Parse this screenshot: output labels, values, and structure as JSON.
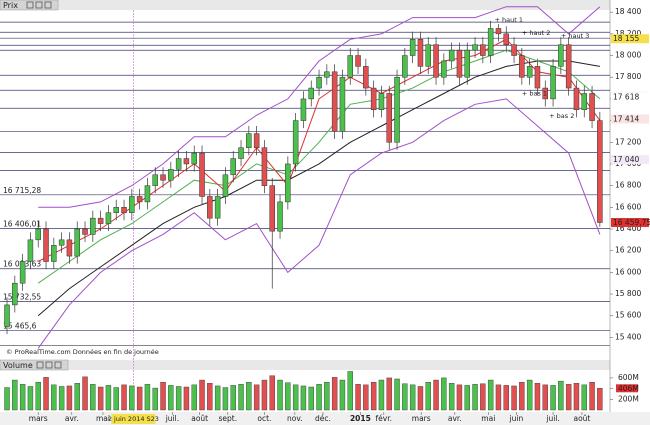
{
  "chart_data": {
    "type": "candlestick",
    "panel_title": "Prix",
    "volume_title": "Volume",
    "footer": "© ProRealTime.com  Données en fin de journée",
    "xlim": [
      -0.9,
      77.3
    ],
    "xticks": [
      {
        "value": 4,
        "label": "mars"
      },
      {
        "value": 8.3,
        "label": "avr."
      },
      {
        "value": 12.3,
        "label": "mai"
      },
      {
        "value": 21.2,
        "label": "juil."
      },
      {
        "value": 24.7,
        "label": "août"
      },
      {
        "value": 28.3,
        "label": "sept."
      },
      {
        "value": 33,
        "label": "oct."
      },
      {
        "value": 36.9,
        "label": "nov."
      },
      {
        "value": 40.5,
        "label": "déc."
      },
      {
        "value": 45.3,
        "label": "2015"
      },
      {
        "value": 48.3,
        "label": "févr."
      },
      {
        "value": 53.1,
        "label": "mars"
      },
      {
        "value": 57.4,
        "label": "avr."
      },
      {
        "value": 61.7,
        "label": "mai"
      },
      {
        "value": 65.3,
        "label": "juin"
      },
      {
        "value": 70,
        "label": "juil."
      },
      {
        "value": 73.7,
        "label": "août"
      }
    ],
    "cursor": {
      "value": 16.2,
      "label": "2 juin 2014 S23"
    },
    "ylim": [
      15330,
      18420
    ],
    "yticks": [
      {
        "value": 15400,
        "label": "15 400"
      },
      {
        "value": 15600,
        "label": "15 600"
      },
      {
        "value": 15800,
        "label": "15 800"
      },
      {
        "value": 16000,
        "label": "16 000"
      },
      {
        "value": 16200,
        "label": "16 200"
      },
      {
        "value": 16400,
        "label": "16 400"
      },
      {
        "value": 16600,
        "label": "16 600"
      },
      {
        "value": 16800,
        "label": "16 800"
      },
      {
        "value": 17000,
        "label": "17 000"
      },
      {
        "value": 17200,
        "label": "17 200"
      },
      {
        "value": 17400,
        "label": "17 400"
      },
      {
        "value": 17600,
        "label": "17 600"
      },
      {
        "value": 17800,
        "label": "17 800"
      },
      {
        "value": 18000,
        "label": "18 000"
      },
      {
        "value": 18200,
        "label": "18 200"
      },
      {
        "value": 18400,
        "label": "18 400"
      }
    ],
    "up_color": "#4cc04c",
    "down_color": "#e05050",
    "open": [
      15500,
      15700,
      15900,
      16100,
      16300,
      16400,
      16100,
      16250,
      16300,
      16150,
      16400,
      16350,
      16500,
      16450,
      16550,
      16600,
      16550,
      16700,
      16650,
      16800,
      16900,
      16850,
      16950,
      17050,
      17000,
      17100,
      16700,
      16500,
      16700,
      16900,
      17050,
      17150,
      17280,
      17150,
      16800,
      16380,
      16650,
      17000,
      17400,
      17600,
      17700,
      17800,
      17850,
      17300,
      17800,
      18000,
      17900,
      17700,
      17500,
      17650,
      17200,
      17800,
      18000,
      18150,
      17900,
      18100,
      17800,
      17950,
      18050,
      17800,
      18050,
      18100,
      18000,
      18250,
      18200,
      18100,
      18000,
      17800,
      17900,
      17700,
      17600,
      17900,
      18100,
      17700,
      17500,
      17650,
      17400
    ],
    "high": [
      15770,
      15970,
      16170,
      16370,
      16470,
      16470,
      16320,
      16370,
      16370,
      16470,
      16470,
      16570,
      16570,
      16620,
      16670,
      16670,
      16770,
      16770,
      16870,
      16970,
      16970,
      17020,
      17120,
      17120,
      17170,
      17170,
      16770,
      16770,
      16970,
      17120,
      17220,
      17350,
      17350,
      17220,
      16870,
      16720,
      17070,
      17470,
      17670,
      17770,
      17870,
      17920,
      17920,
      17870,
      18070,
      18070,
      17970,
      17770,
      17720,
      17720,
      17870,
      18070,
      18220,
      18220,
      18170,
      18170,
      18020,
      18120,
      18120,
      18120,
      18170,
      18170,
      18320,
      18290,
      18270,
      18170,
      18070,
      17970,
      17970,
      17770,
      17970,
      18170,
      18170,
      17770,
      17720,
      17720,
      17480
    ],
    "low": [
      15430,
      15630,
      15830,
      16030,
      16230,
      16030,
      16030,
      16180,
      16080,
      16080,
      16280,
      16280,
      16380,
      16380,
      16480,
      16480,
      16480,
      16580,
      16580,
      16730,
      16780,
      16780,
      16880,
      16930,
      16930,
      16630,
      16430,
      16430,
      16630,
      16830,
      16980,
      17080,
      17080,
      16730,
      15850,
      16310,
      16580,
      16930,
      17330,
      17530,
      17630,
      17730,
      17230,
      17230,
      17730,
      17830,
      17630,
      17430,
      17430,
      17130,
      17130,
      17730,
      17930,
      17830,
      17830,
      17730,
      17730,
      17880,
      17730,
      17730,
      17980,
      17930,
      17930,
      18130,
      18030,
      17930,
      17730,
      17730,
      17630,
      17530,
      17530,
      17830,
      17630,
      17430,
      17430,
      17330,
      16420
    ],
    "close": [
      15700,
      15900,
      16100,
      16300,
      16400,
      16100,
      16250,
      16300,
      16150,
      16400,
      16350,
      16500,
      16450,
      16550,
      16600,
      16550,
      16700,
      16650,
      16800,
      16900,
      16850,
      16950,
      17050,
      17000,
      17100,
      16700,
      16500,
      16700,
      16900,
      17050,
      17150,
      17280,
      17150,
      16800,
      16380,
      16650,
      17000,
      17400,
      17600,
      17700,
      17800,
      17850,
      17300,
      17800,
      18000,
      17900,
      17700,
      17500,
      17650,
      17200,
      17800,
      18000,
      18150,
      17900,
      18100,
      17800,
      17950,
      18050,
      17800,
      18050,
      18100,
      18000,
      18250,
      18200,
      18100,
      18000,
      17800,
      17900,
      17700,
      17600,
      17900,
      18100,
      17700,
      17500,
      17650,
      17400,
      16460
    ],
    "lines": [
      {
        "color": "#a050c8",
        "x": [
          4,
          8,
          12,
          16,
          20,
          24,
          28,
          32,
          36,
          40,
          44,
          48,
          52,
          56,
          60,
          64,
          68,
          72,
          76
        ],
        "values": [
          16600,
          16600,
          16650,
          16800,
          17000,
          17250,
          17250,
          17450,
          17600,
          17950,
          18150,
          18200,
          18350,
          18350,
          18350,
          18450,
          18450,
          18200,
          18450
        ]
      },
      {
        "color": "#a050c8",
        "x": [
          4,
          8,
          12,
          16,
          20,
          24,
          28,
          32,
          36,
          40,
          44,
          48,
          52,
          56,
          60,
          64,
          68,
          72,
          76
        ],
        "values": [
          15300,
          15700,
          16000,
          16200,
          16350,
          16550,
          16300,
          16450,
          16000,
          16250,
          16900,
          17100,
          17200,
          17400,
          17550,
          17600,
          17350,
          17100,
          16350
        ]
      },
      {
        "color": "#222222",
        "x": [
          4,
          8,
          12,
          16,
          20,
          24,
          28,
          32,
          36,
          40,
          44,
          48,
          52,
          56,
          60,
          64,
          68,
          72,
          76
        ],
        "values": [
          15600,
          15850,
          16050,
          16250,
          16450,
          16600,
          16700,
          16850,
          16850,
          17000,
          17200,
          17350,
          17500,
          17650,
          17800,
          17900,
          17950,
          17950,
          17900
        ]
      },
      {
        "color": "#50b050",
        "x": [
          4,
          8,
          12,
          16,
          20,
          24,
          28,
          32,
          36,
          40,
          44,
          48,
          52,
          56,
          60,
          64,
          68,
          72,
          76
        ],
        "values": [
          15900,
          16100,
          16300,
          16450,
          16650,
          16850,
          16800,
          17000,
          16900,
          17200,
          17550,
          17600,
          17700,
          17850,
          17950,
          18050,
          17950,
          17850,
          17600
        ]
      },
      {
        "color": "#e03030",
        "x": [
          4,
          8,
          12,
          16,
          20,
          24,
          28,
          32,
          36,
          40,
          44,
          48,
          52,
          56,
          60,
          64,
          68,
          72,
          76
        ],
        "values": [
          16100,
          16250,
          16400,
          16600,
          16800,
          17000,
          16750,
          17150,
          16800,
          17600,
          17800,
          17650,
          17800,
          17950,
          18000,
          18150,
          17850,
          17800,
          17400
        ]
      }
    ],
    "levels": [
      18308,
      18215,
      18160,
      18095,
      18049,
      17818,
      17680,
      17514,
      17301,
      17107,
      16941
    ],
    "labeled_levels": [
      {
        "value": 16715.28,
        "label": "16 715,28"
      },
      {
        "value": 16406.01,
        "label": "16 406,01"
      },
      {
        "value": 16033.63,
        "label": "16 033,63"
      },
      {
        "value": 15732.55,
        "label": "15 732,55"
      },
      {
        "value": 15465.6,
        "label": "15 465,6"
      }
    ],
    "badges": [
      {
        "value": 18155,
        "label": "18 155",
        "color": "#222222",
        "background": "#f5e04a"
      },
      {
        "value": 17626,
        "label": "17 626",
        "color": "#50b050",
        "background": "#eef7ee"
      },
      {
        "value": 17618,
        "label": "17 618",
        "color": "#555555",
        "background": "#ffffff"
      },
      {
        "value": 17414,
        "label": "17 414",
        "color": "#e03030",
        "background": "#fbe3e3"
      },
      {
        "value": 17040,
        "label": "17 040",
        "color": "#a050c8",
        "background": "#f3e8f8"
      },
      {
        "value": 16459.75,
        "label": "16 459,75",
        "color": "#ffffff",
        "background": "#e03030"
      }
    ],
    "annotations": [
      {
        "text": "+ haut 1",
        "x": 62.5,
        "y": 18330
      },
      {
        "text": "+ haut 2",
        "x": 66,
        "y": 18210
      },
      {
        "text": "+ haut 3",
        "x": 71,
        "y": 18180
      },
      {
        "text": "+ bas 1",
        "x": 66,
        "y": 17650
      },
      {
        "text": "+ bas 2",
        "x": 69.5,
        "y": 17440
      }
    ],
    "volume_ylim": [
      0,
      860
    ],
    "volume_yticks": [
      {
        "value": 200,
        "label": "200M"
      },
      {
        "value": 400,
        "label": "400M"
      },
      {
        "value": 600,
        "label": "600M"
      }
    ],
    "volume": [
      420,
      560,
      480,
      440,
      520,
      610,
      470,
      440,
      450,
      500,
      620,
      480,
      430,
      460,
      420,
      470,
      450,
      430,
      480,
      410,
      520,
      460,
      440,
      430,
      470,
      560,
      500,
      450,
      420,
      460,
      480,
      520,
      470,
      560,
      640,
      560,
      510,
      470,
      450,
      430,
      480,
      520,
      610,
      560,
      720,
      480,
      470,
      520,
      560,
      600,
      580,
      490,
      470,
      440,
      520,
      560,
      600,
      500,
      470,
      460,
      480,
      490,
      560,
      470,
      460,
      450,
      520,
      560,
      500,
      470,
      460,
      540,
      480,
      500,
      470,
      520,
      406
    ],
    "volume_badge": {
      "value": 406,
      "label": "406M",
      "background": "#e03030"
    }
  }
}
